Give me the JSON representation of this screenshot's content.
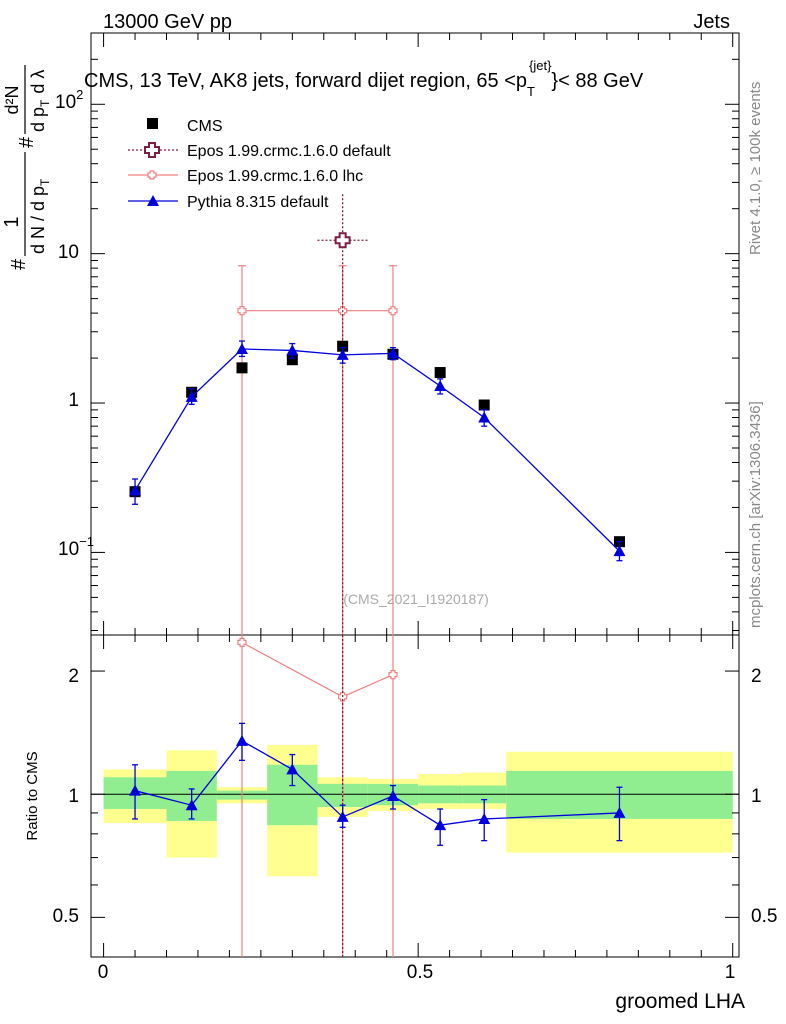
{
  "header": {
    "left": "13000 GeV pp",
    "right": "Jets",
    "title_main": "CMS, 13 TeV, AK8 jets, forward dijet region, 65 <p",
    "title_sub": "T",
    "title_sup": "{jet}",
    "title_end": "}< 88 GeV"
  },
  "side_text": {
    "rivet": "Rivet 4.1.0, ≥ 100k events",
    "mcplots": "mcplots.cern.ch [arXiv:1306.3436]"
  },
  "watermark": "(CMS_2021_I1920187)",
  "legend": [
    {
      "label": "CMS",
      "color": "#000000"
    },
    {
      "label": "Epos 1.99.crmc.1.6.0 default",
      "color": "#7f1f3f"
    },
    {
      "label": "Epos 1.99.crmc.1.6.0 lhc",
      "color": "#f08080"
    },
    {
      "label": "Pythia 8.315 default",
      "color": "#0000dd"
    }
  ],
  "ylabel_main": {
    "frac1_num": "1",
    "frac1_den": "d N / d p",
    "frac1_den_sub": "T",
    "hash1": "#",
    "hash2": "#",
    "frac2_num": "d²N",
    "frac2_den": "d p",
    "frac2_den_sub": "T",
    "frac2_den_end": "d λ"
  },
  "ratio_ylabel": "Ratio to CMS",
  "xlabel": "groomed LHA",
  "main_ticks": {
    "y": [
      "10⁻¹",
      "1",
      "10",
      "10²"
    ],
    "y_exp": [
      "−1",
      "2"
    ]
  },
  "ratio_ticks": {
    "y": [
      "0.5",
      "1",
      "2"
    ],
    "x": [
      "0",
      "0.5",
      "1"
    ]
  },
  "colors": {
    "cms": "#000000",
    "epos_default": "#7f1f3f",
    "epos_lhc": "#f08080",
    "pythia": "#0000dd",
    "band_inner": "#90ee90",
    "band_outer": "#ffff90"
  },
  "chart_data": {
    "type": "line",
    "xlabel": "groomed LHA",
    "xlim": [
      -0.02,
      1.01
    ],
    "main": {
      "ylabel": "1/(dN/dp_T) d²N/(dp_T dλ)",
      "yscale": "log",
      "ylim": [
        0.028,
        300
      ],
      "series": [
        {
          "name": "CMS",
          "x": [
            0.05,
            0.14,
            0.22,
            0.3,
            0.38,
            0.46,
            0.535,
            0.605,
            0.82
          ],
          "y": [
            0.255,
            1.18,
            1.72,
            1.95,
            2.4,
            2.12,
            1.6,
            0.97,
            0.118
          ]
        },
        {
          "name": "Epos 1.99.crmc.1.6.0 default",
          "x": [
            0.38
          ],
          "y": [
            12.3
          ],
          "ylow": [
            0.0001
          ],
          "yhigh": [
            25
          ],
          "xlow": [
            0.34
          ],
          "xhigh": [
            0.42
          ]
        },
        {
          "name": "Epos 1.99.crmc.1.6.0 lhc",
          "x": [
            0.22,
            0.38,
            0.46
          ],
          "y": [
            4.15,
            4.15,
            4.15
          ],
          "ylow": [
            0.0001,
            0.0001,
            0.0001
          ],
          "yhigh": [
            8.3,
            8.3,
            8.3
          ]
        },
        {
          "name": "Pythia 8.315 default",
          "x": [
            0.05,
            0.14,
            0.22,
            0.3,
            0.38,
            0.46,
            0.535,
            0.605,
            0.82
          ],
          "y": [
            0.26,
            1.1,
            2.3,
            2.25,
            2.1,
            2.15,
            1.3,
            0.8,
            0.102
          ],
          "ylow": [
            0.21,
            0.98,
            2.05,
            2.0,
            1.85,
            1.95,
            1.15,
            0.7,
            0.088
          ],
          "yhigh": [
            0.31,
            1.25,
            2.6,
            2.5,
            2.35,
            2.35,
            1.45,
            0.9,
            0.118
          ]
        }
      ]
    },
    "ratio": {
      "ylabel": "Ratio to CMS",
      "yscale": "log",
      "ylim": [
        0.4,
        2.45
      ],
      "bands": [
        {
          "x0": 0.0,
          "x1": 0.1,
          "inner": [
            0.92,
            1.1
          ],
          "outer": [
            0.85,
            1.15
          ]
        },
        {
          "x0": 0.1,
          "x1": 0.18,
          "inner": [
            0.86,
            1.14
          ],
          "outer": [
            0.7,
            1.28
          ]
        },
        {
          "x0": 0.18,
          "x1": 0.26,
          "inner": [
            0.97,
            1.02
          ],
          "outer": [
            0.95,
            1.04
          ]
        },
        {
          "x0": 0.26,
          "x1": 0.34,
          "inner": [
            0.84,
            1.18
          ],
          "outer": [
            0.63,
            1.32
          ]
        },
        {
          "x0": 0.34,
          "x1": 0.42,
          "inner": [
            0.93,
            1.06
          ],
          "outer": [
            0.88,
            1.1
          ]
        },
        {
          "x0": 0.42,
          "x1": 0.5,
          "inner": [
            0.94,
            1.06
          ],
          "outer": [
            0.91,
            1.09
          ]
        },
        {
          "x0": 0.5,
          "x1": 0.57,
          "inner": [
            0.95,
            1.05
          ],
          "outer": [
            0.92,
            1.12
          ]
        },
        {
          "x0": 0.57,
          "x1": 0.64,
          "inner": [
            0.95,
            1.05
          ],
          "outer": [
            0.92,
            1.13
          ]
        },
        {
          "x0": 0.64,
          "x1": 1.0,
          "inner": [
            0.87,
            1.14
          ],
          "outer": [
            0.72,
            1.27
          ]
        }
      ],
      "series": [
        {
          "name": "Epos 1.99.crmc.1.6.0 lhc",
          "x": [
            0.22,
            0.38,
            0.46
          ],
          "y": [
            2.35,
            1.73,
            1.96
          ]
        },
        {
          "name": "Pythia 8.315 default",
          "x": [
            0.05,
            0.14,
            0.22,
            0.3,
            0.38,
            0.46,
            0.535,
            0.605,
            0.82
          ],
          "y": [
            1.02,
            0.94,
            1.35,
            1.15,
            0.88,
            0.99,
            0.84,
            0.87,
            0.9
          ],
          "ylow": [
            0.87,
            0.87,
            1.21,
            1.05,
            0.83,
            0.92,
            0.75,
            0.77,
            0.77
          ],
          "yhigh": [
            1.18,
            1.03,
            1.49,
            1.25,
            0.94,
            1.05,
            0.92,
            0.97,
            1.04
          ]
        }
      ]
    }
  }
}
